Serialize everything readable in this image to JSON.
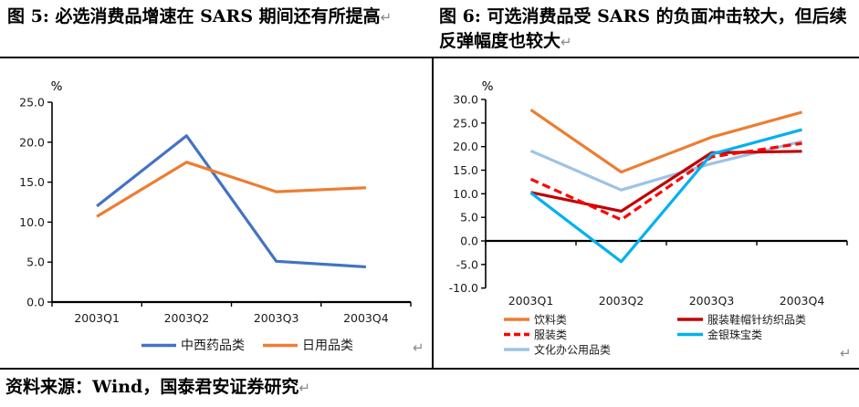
{
  "page": {
    "figure5": {
      "title": "图 5: 必选消费品增速在 SARS 期间还有所提高"
    },
    "figure6": {
      "title": "图 6: 可选消费品受 SARS 的负面冲击较大，但后续反弹幅度也较大"
    },
    "source": "资料来源：Wind，国泰君安证券研究",
    "paragraph_mark": "↵"
  },
  "colors": {
    "blue": "#4472C4",
    "orange": "#ED7D31",
    "dark_red": "#C00000",
    "red": "#FF0000",
    "cyan": "#00B0F0",
    "light_blue": "#9DC3E6",
    "axis": "#000000"
  },
  "chart_data": [
    {
      "id": "fig5",
      "type": "line",
      "title": "必选消费品增速在 SARS 期间还有所提高",
      "ylabel": "%",
      "xlabel": "",
      "ylim": [
        0,
        25
      ],
      "yticks": [
        0,
        5,
        10,
        15,
        20,
        25
      ],
      "grid": false,
      "legend_position": "bottom",
      "categories": [
        "2003Q1",
        "2003Q2",
        "2003Q3",
        "2003Q4"
      ],
      "series": [
        {
          "name": "中西药品类",
          "color": "#4472C4",
          "dash": false,
          "values": [
            12.0,
            20.8,
            5.1,
            4.4
          ]
        },
        {
          "name": "日用品类",
          "color": "#ED7D31",
          "dash": false,
          "values": [
            10.7,
            17.5,
            13.8,
            14.3
          ]
        }
      ]
    },
    {
      "id": "fig6",
      "type": "line",
      "title": "可选消费品受 SARS 的负面冲击较大，但后续反弹幅度也较大",
      "ylabel": "%",
      "xlabel": "",
      "ylim": [
        -10,
        30
      ],
      "yticks": [
        -10,
        -5,
        0,
        5,
        10,
        15,
        20,
        25,
        30
      ],
      "grid": false,
      "legend_position": "bottom",
      "legend_columns": [
        [
          "饮料类",
          "服装类",
          "文化办公用品类"
        ],
        [
          "服装鞋帽针纺织品类",
          "金银珠宝类"
        ]
      ],
      "draw_order": [
        "文化办公用品类",
        "饮料类",
        "服装鞋帽针纺织品类",
        "服装类",
        "金银珠宝类"
      ],
      "categories": [
        "2003Q1",
        "2003Q2",
        "2003Q3",
        "2003Q4"
      ],
      "series": [
        {
          "name": "饮料类",
          "color": "#ED7D31",
          "dash": false,
          "values": [
            27.8,
            14.6,
            22.0,
            27.3
          ]
        },
        {
          "name": "服装鞋帽针纺织品类",
          "color": "#C00000",
          "dash": false,
          "values": [
            10.3,
            6.3,
            18.7,
            19.0
          ]
        },
        {
          "name": "服装类",
          "color": "#FF0000",
          "dash": true,
          "values": [
            13.1,
            4.5,
            17.8,
            20.7
          ]
        },
        {
          "name": "金银珠宝类",
          "color": "#00B0F0",
          "dash": false,
          "values": [
            10.2,
            -4.4,
            18.4,
            23.6
          ]
        },
        {
          "name": "文化办公用品类",
          "color": "#9DC3E6",
          "dash": false,
          "values": [
            19.1,
            10.8,
            16.4,
            21.1
          ]
        }
      ]
    }
  ]
}
